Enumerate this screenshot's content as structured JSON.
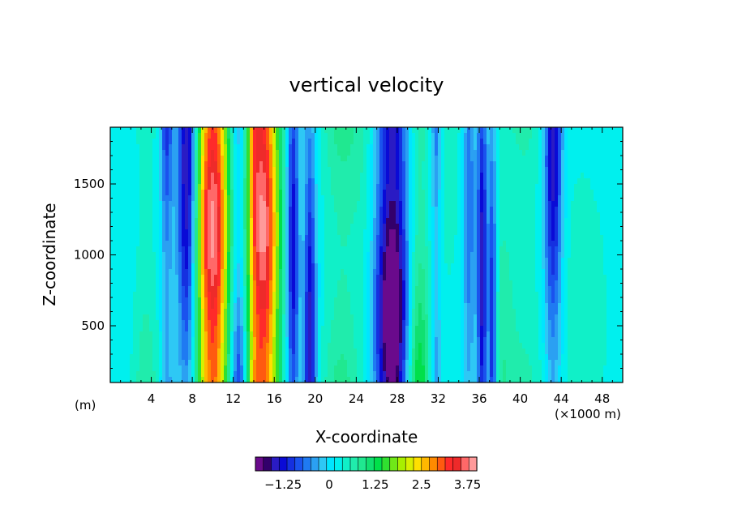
{
  "chart_data": {
    "type": "heatmap",
    "title": "vertical velocity",
    "xlabel": "X-coordinate",
    "ylabel": "Z-coordinate",
    "x_unit_label": "(m)",
    "x_scale_label": "(×1000 m)",
    "xlim": [
      0,
      50
    ],
    "ylim": [
      100,
      1900
    ],
    "xticks": [
      4,
      8,
      12,
      16,
      20,
      24,
      28,
      32,
      36,
      40,
      44,
      48
    ],
    "yticks": [
      500,
      1000,
      1500
    ],
    "colorbar": {
      "ticks": [
        -1.25,
        0,
        1.25,
        2.5,
        3.75
      ],
      "tick_labels": [
        "−1.25",
        "0",
        "1.25",
        "2.5",
        "3.75"
      ],
      "vmin": -2.0,
      "vmax": 4.0,
      "colors": [
        "#6a0a8c",
        "#33006b",
        "#2a1bc4",
        "#0a0ad6",
        "#1530e0",
        "#1a52ee",
        "#1f7af2",
        "#2ba0f2",
        "#2ec8f5",
        "#00e5ff",
        "#00f0ee",
        "#10f0c8",
        "#20ecac",
        "#20e890",
        "#10e070",
        "#00e04a",
        "#30e030",
        "#70e818",
        "#a8ef00",
        "#d8f000",
        "#ffe000",
        "#ffb800",
        "#ff8a00",
        "#ff5a10",
        "#ff2a2a",
        "#ee2a2a",
        "#ff6868",
        "#ff9a9a"
      ]
    },
    "features": [
      {
        "x": 10.0,
        "width": 1.6,
        "value": 3.6
      },
      {
        "x": 15.0,
        "width": 1.5,
        "value": 3.5
      },
      {
        "x": 14.0,
        "width": 0.7,
        "value": 1.2
      },
      {
        "x": 3.5,
        "width": 1.5,
        "value": 0.6
      },
      {
        "x": 22.5,
        "width": 2.0,
        "value": 1.0
      },
      {
        "x": 30.0,
        "width": 1.2,
        "value": 1.4
      },
      {
        "x": 25.0,
        "width": 1.5,
        "value": 0.3
      },
      {
        "x": 33.0,
        "width": 1.5,
        "value": 0.4
      },
      {
        "x": 38.0,
        "width": 1.5,
        "value": 0.5
      },
      {
        "x": 40.5,
        "width": 2.0,
        "value": 0.6
      },
      {
        "x": 46.0,
        "width": 3.5,
        "value": 0.3
      },
      {
        "x": 7.5,
        "width": 0.9,
        "value": -1.8
      },
      {
        "x": 5.5,
        "width": 0.6,
        "value": -1.3
      },
      {
        "x": 12.5,
        "width": 0.8,
        "value": -1.5
      },
      {
        "x": 17.8,
        "width": 0.6,
        "value": -1.4
      },
      {
        "x": 19.5,
        "width": 0.6,
        "value": -1.5
      },
      {
        "x": 27.5,
        "width": 1.7,
        "value": -2.2
      },
      {
        "x": 31.8,
        "width": 0.5,
        "value": -1.3
      },
      {
        "x": 36.3,
        "width": 0.5,
        "value": -1.6
      },
      {
        "x": 37.3,
        "width": 0.4,
        "value": -1.5
      },
      {
        "x": 43.2,
        "width": 0.9,
        "value": -1.6
      },
      {
        "x": 35.0,
        "width": 0.6,
        "value": -0.8
      }
    ]
  }
}
